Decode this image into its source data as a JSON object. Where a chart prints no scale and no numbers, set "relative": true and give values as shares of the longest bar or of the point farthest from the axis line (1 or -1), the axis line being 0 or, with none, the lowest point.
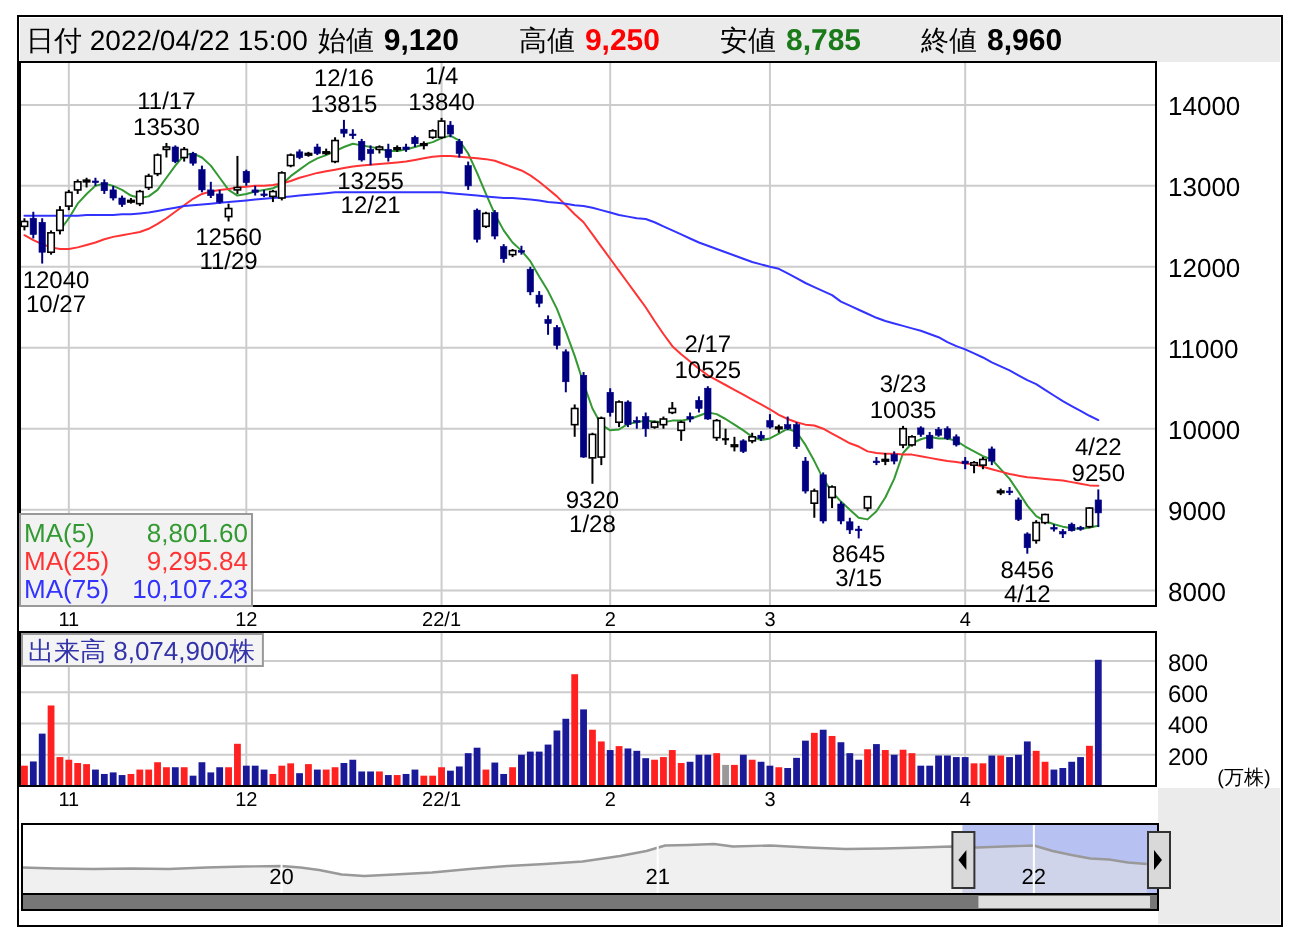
{
  "chart_data": [
    {
      "type": "candlestick",
      "categories": [
        null,
        null,
        null,
        null,
        null,
        "11",
        null,
        null,
        null,
        null,
        null,
        null,
        null,
        null,
        null,
        null,
        null,
        null,
        null,
        null,
        null,
        null,
        null,
        null,
        null,
        "12",
        null,
        null,
        null,
        null,
        null,
        null,
        null,
        null,
        null,
        null,
        null,
        null,
        null,
        null,
        null,
        null,
        null,
        null,
        null,
        null,
        null,
        "22/1",
        null,
        null,
        null,
        null,
        null,
        null,
        null,
        null,
        null,
        null,
        null,
        null,
        null,
        null,
        null,
        null,
        null,
        null,
        "2",
        null,
        null,
        null,
        null,
        null,
        null,
        null,
        null,
        null,
        null,
        null,
        null,
        null,
        null,
        null,
        null,
        null,
        "3",
        null,
        null,
        null,
        null,
        null,
        null,
        null,
        null,
        null,
        null,
        null,
        null,
        null,
        null,
        null,
        null,
        null,
        null,
        null,
        null,
        null,
        "4",
        null,
        null,
        null,
        null,
        null,
        null,
        null,
        null,
        null,
        null,
        null,
        null,
        null,
        null,
        null
      ],
      "ohlc": [
        [
          12500,
          12600,
          12450,
          12560
        ],
        [
          12600,
          12680,
          12350,
          12400
        ],
        [
          12550,
          12600,
          12040,
          12180
        ],
        [
          12180,
          12450,
          12150,
          12420
        ],
        [
          12450,
          12750,
          12400,
          12700
        ],
        [
          12750,
          12950,
          12700,
          12920
        ],
        [
          12950,
          13080,
          12900,
          13050
        ],
        [
          13050,
          13100,
          12980,
          13070
        ],
        [
          13060,
          13100,
          13000,
          13040
        ],
        [
          13040,
          13080,
          12900,
          12940
        ],
        [
          12950,
          13000,
          12820,
          12850
        ],
        [
          12850,
          12880,
          12740,
          12770
        ],
        [
          12800,
          12850,
          12780,
          12820
        ],
        [
          12780,
          12950,
          12750,
          12930
        ],
        [
          12980,
          13150,
          12950,
          13120
        ],
        [
          13150,
          13400,
          13120,
          13380
        ],
        [
          13450,
          13530,
          13350,
          13480
        ],
        [
          13480,
          13500,
          13280,
          13300
        ],
        [
          13350,
          13480,
          13300,
          13450
        ],
        [
          13400,
          13420,
          13250,
          13280
        ],
        [
          13200,
          13250,
          12920,
          12950
        ],
        [
          12950,
          13050,
          12850,
          12880
        ],
        [
          12900,
          12950,
          12780,
          12800
        ],
        [
          12620,
          12780,
          12560,
          12720
        ],
        [
          12950,
          13370,
          12900,
          12980
        ],
        [
          13180,
          13200,
          13000,
          13040
        ],
        [
          12950,
          13000,
          12880,
          12920
        ],
        [
          12900,
          12950,
          12860,
          12880
        ],
        [
          12870,
          12950,
          12800,
          12930
        ],
        [
          12850,
          13180,
          12820,
          13160
        ],
        [
          13250,
          13400,
          13230,
          13380
        ],
        [
          13420,
          13450,
          13330,
          13350
        ],
        [
          13380,
          13420,
          13360,
          13400
        ],
        [
          13480,
          13520,
          13380,
          13400
        ],
        [
          13400,
          13460,
          13380,
          13420
        ],
        [
          13300,
          13600,
          13280,
          13560
        ],
        [
          13700,
          13815,
          13600,
          13650
        ],
        [
          13640,
          13700,
          13580,
          13620
        ],
        [
          13550,
          13580,
          13300,
          13320
        ],
        [
          13450,
          13500,
          13255,
          13400
        ],
        [
          13450,
          13500,
          13400,
          13480
        ],
        [
          13450,
          13520,
          13300,
          13350
        ],
        [
          13450,
          13500,
          13420,
          13470
        ],
        [
          13480,
          13520,
          13420,
          13450
        ],
        [
          13600,
          13620,
          13480,
          13520
        ],
        [
          13500,
          13550,
          13450,
          13520
        ],
        [
          13600,
          13700,
          13580,
          13680
        ],
        [
          13600,
          13840,
          13580,
          13800
        ],
        [
          13750,
          13800,
          13600,
          13640
        ],
        [
          13550,
          13580,
          13350,
          13400
        ],
        [
          13250,
          13300,
          12950,
          13000
        ],
        [
          12700,
          12720,
          12300,
          12340
        ],
        [
          12500,
          12680,
          12480,
          12660
        ],
        [
          12670,
          12700,
          12340,
          12380
        ],
        [
          12250,
          12280,
          12050,
          12100
        ],
        [
          12150,
          12220,
          12120,
          12200
        ],
        [
          12200,
          12260,
          12150,
          12180
        ],
        [
          11970,
          12000,
          11650,
          11690
        ],
        [
          11650,
          11700,
          11500,
          11550
        ],
        [
          11350,
          11400,
          11160,
          11300
        ],
        [
          11250,
          11280,
          10980,
          11030
        ],
        [
          10950,
          10980,
          10450,
          10580
        ],
        [
          10050,
          10300,
          9900,
          10250
        ],
        [
          10660,
          10700,
          9640,
          9650
        ],
        [
          9640,
          9950,
          9320,
          9930
        ],
        [
          9650,
          10150,
          9550,
          10130
        ],
        [
          10450,
          10500,
          10150,
          10200
        ],
        [
          10080,
          10350,
          10020,
          10330
        ],
        [
          10330,
          10350,
          10020,
          10050
        ],
        [
          10100,
          10150,
          10000,
          10080
        ],
        [
          10150,
          10200,
          9900,
          10000
        ],
        [
          10020,
          10100,
          10000,
          10080
        ],
        [
          10050,
          10150,
          10000,
          10120
        ],
        [
          10200,
          10330,
          10180,
          10250
        ],
        [
          9980,
          10100,
          9850,
          10080
        ],
        [
          10150,
          10200,
          10080,
          10120
        ],
        [
          10350,
          10400,
          10200,
          10250
        ],
        [
          10500,
          10525,
          10110,
          10120
        ],
        [
          9890,
          10120,
          9850,
          10100
        ],
        [
          9880,
          10000,
          9800,
          9880
        ],
        [
          9780,
          9900,
          9720,
          9800
        ],
        [
          9850,
          9870,
          9700,
          9720
        ],
        [
          9850,
          9950,
          9820,
          9900
        ],
        [
          9920,
          9970,
          9850,
          9880
        ],
        [
          10100,
          10180,
          10000,
          10020
        ],
        [
          10000,
          10050,
          9950,
          10020
        ],
        [
          10050,
          10150,
          9980,
          10000
        ],
        [
          10050,
          10080,
          9750,
          9780
        ],
        [
          9600,
          9650,
          9200,
          9230
        ],
        [
          9080,
          9260,
          8900,
          9230
        ],
        [
          9430,
          9460,
          8830,
          8860
        ],
        [
          9150,
          9300,
          9020,
          9280
        ],
        [
          9070,
          9100,
          8820,
          8860
        ],
        [
          8850,
          8900,
          8700,
          8750
        ],
        [
          8760,
          8800,
          8645,
          8740
        ],
        [
          9020,
          9170,
          8980,
          9160
        ],
        [
          9600,
          9650,
          9550,
          9580
        ],
        [
          9600,
          9700,
          9550,
          9620
        ],
        [
          9680,
          9720,
          9560,
          9600
        ],
        [
          9800,
          10035,
          9760,
          10000
        ],
        [
          9800,
          9920,
          9780,
          9900
        ],
        [
          10010,
          10030,
          9900,
          9930
        ],
        [
          9920,
          9960,
          9750,
          9760
        ],
        [
          9990,
          10020,
          9900,
          9920
        ],
        [
          10000,
          10030,
          9860,
          9880
        ],
        [
          9900,
          9930,
          9780,
          9800
        ],
        [
          9600,
          9650,
          9500,
          9570
        ],
        [
          9550,
          9600,
          9450,
          9580
        ],
        [
          9550,
          9650,
          9500,
          9620
        ],
        [
          9750,
          9780,
          9550,
          9600
        ],
        [
          9220,
          9260,
          9180,
          9230
        ],
        [
          9230,
          9280,
          9180,
          9220
        ],
        [
          9120,
          9150,
          8860,
          8880
        ],
        [
          8700,
          8720,
          8456,
          8530
        ],
        [
          8620,
          8870,
          8580,
          8840
        ],
        [
          8840,
          8950,
          8820,
          8940
        ],
        [
          8780,
          8820,
          8730,
          8760
        ],
        [
          8730,
          8760,
          8650,
          8700
        ],
        [
          8820,
          8840,
          8730,
          8740
        ],
        [
          8780,
          8800,
          8740,
          8770
        ],
        [
          8790,
          9030,
          8770,
          9020
        ],
        [
          9120,
          9250,
          8785,
          8960
        ]
      ],
      "series": [
        {
          "type": "line",
          "name": "MA(5)",
          "color": "#339933",
          "values": [
            null,
            null,
            null,
            null,
            12450,
            12600,
            12780,
            12900,
            13000,
            13030,
            13000,
            12950,
            12880,
            12850,
            12870,
            12950,
            13100,
            13250,
            13380,
            13400,
            13350,
            13250,
            13100,
            12950,
            12880,
            12900,
            12930,
            12950,
            12970,
            13020,
            13120,
            13200,
            13280,
            13340,
            13380,
            13430,
            13480,
            13520,
            13500,
            13480,
            13460,
            13430,
            13430,
            13450,
            13480,
            13510,
            13540,
            13590,
            13620,
            13560,
            13400,
            13160,
            12900,
            12650,
            12450,
            12300,
            12200,
            12070,
            11880,
            11700,
            11480,
            11200,
            10900,
            10560,
            10250,
            10050,
            9980,
            9990,
            10060,
            10080,
            10100,
            10090,
            10080,
            10100,
            10100,
            10120,
            10160,
            10200,
            10180,
            10120,
            10050,
            9980,
            9900,
            9860,
            9880,
            9940,
            10000,
            9960,
            9800,
            9600,
            9380,
            9220,
            9100,
            9000,
            8900,
            8880,
            8980,
            9150,
            9380,
            9700,
            9820,
            9870,
            9900,
            9880,
            9880,
            9850,
            9780,
            9720,
            9660,
            9620,
            9500,
            9380,
            9220,
            9050,
            8920,
            8860,
            8820,
            8790,
            8770,
            8760,
            8780,
            8801.6
          ]
        },
        {
          "type": "line",
          "name": "MA(25)",
          "color": "#ff3333",
          "values": [
            12390,
            12330,
            12280,
            12240,
            12220,
            12220,
            12240,
            12270,
            12300,
            12340,
            12370,
            12390,
            12410,
            12430,
            12470,
            12530,
            12600,
            12680,
            12760,
            12840,
            12900,
            12930,
            12950,
            12960,
            12980,
            12990,
            13000,
            13000,
            13010,
            13030,
            13060,
            13100,
            13130,
            13160,
            13180,
            13200,
            13220,
            13240,
            13250,
            13260,
            13270,
            13280,
            13290,
            13300,
            13320,
            13340,
            13360,
            13370,
            13370,
            13360,
            13350,
            13340,
            13330,
            13310,
            13270,
            13230,
            13190,
            13130,
            13050,
            12960,
            12870,
            12760,
            12650,
            12550,
            12400,
            12250,
            12100,
            11950,
            11800,
            11650,
            11500,
            11330,
            11170,
            11020,
            10920,
            10830,
            10740,
            10660,
            10600,
            10540,
            10480,
            10420,
            10360,
            10300,
            10240,
            10170,
            10120,
            10080,
            10050,
            10040,
            10000,
            9940,
            9880,
            9820,
            9780,
            9720,
            9700,
            9690,
            9690,
            9680,
            9680,
            9660,
            9640,
            9620,
            9600,
            9590,
            9570,
            9560,
            9530,
            9500,
            9470,
            9440,
            9420,
            9400,
            9390,
            9380,
            9370,
            9360,
            9340,
            9320,
            9300,
            9295.84
          ]
        },
        {
          "type": "line",
          "name": "MA(75)",
          "color": "#3333ff",
          "values": [
            12630,
            12630,
            12630,
            12630,
            12630,
            12630,
            12630,
            12640,
            12640,
            12640,
            12640,
            12650,
            12650,
            12660,
            12670,
            12690,
            12710,
            12730,
            12750,
            12760,
            12770,
            12780,
            12790,
            12800,
            12810,
            12820,
            12830,
            12840,
            12850,
            12860,
            12870,
            12880,
            12890,
            12900,
            12910,
            12920,
            12920,
            12920,
            12920,
            12920,
            12920,
            12920,
            12920,
            12920,
            12920,
            12920,
            12920,
            12920,
            12910,
            12900,
            12890,
            12880,
            12870,
            12860,
            12850,
            12850,
            12840,
            12830,
            12820,
            12800,
            12790,
            12780,
            12760,
            12750,
            12730,
            12700,
            12670,
            12640,
            12620,
            12600,
            12590,
            12550,
            12500,
            12450,
            12400,
            12350,
            12300,
            12260,
            12220,
            12180,
            12140,
            12100,
            12060,
            12030,
            12000,
            11975,
            11920,
            11860,
            11800,
            11750,
            11700,
            11650,
            11570,
            11520,
            11470,
            11420,
            11370,
            11330,
            11300,
            11270,
            11240,
            11210,
            11170,
            11130,
            11070,
            11020,
            10980,
            10930,
            10880,
            10820,
            10770,
            10720,
            10660,
            10600,
            10550,
            10480,
            10410,
            10340,
            10280,
            10220,
            10160,
            10107.23
          ]
        }
      ],
      "ylim": [
        7810,
        14530
      ],
      "yticks": [
        8000,
        9000,
        10000,
        11000,
        12000,
        13000,
        14000
      ],
      "grid": true,
      "legend": "bottom left",
      "annotations": [
        "日付 2022/04/22 15:00",
        "始値",
        "9,120",
        "高値",
        "9,250",
        "安値",
        "8,785",
        "終値",
        "8,960",
        "8,801.60",
        "9,295.84",
        "10,107.23",
        "12040",
        "10/27",
        {
          "text": "11/17",
          "y": 13530
        },
        {
          "text": "13530",
          "y": 13530
        },
        {
          "text": "12560",
          "y": 12560
        },
        {
          "text": "11/29",
          "y": 12560
        },
        {
          "text": "12/16",
          "y": 13815
        },
        {
          "text": "13815",
          "y": 13815
        },
        {
          "text": "13255",
          "y": 13255
        },
        {
          "text": "12/21",
          "y": 13255
        },
        {
          "text": "1/4",
          "y": 13840
        },
        {
          "text": "13840",
          "y": 13840
        },
        {
          "text": "9320",
          "y": 9320
        },
        {
          "text": "1/28",
          "y": 9320
        },
        {
          "text": "2/17",
          "y": 10525
        },
        {
          "text": "10525",
          "y": 10525
        },
        {
          "text": "8645",
          "y": 8645
        },
        {
          "text": "3/15",
          "y": 8645
        },
        {
          "text": "3/23",
          "y": 10035
        },
        {
          "text": "10035",
          "y": 10035
        },
        {
          "text": "8456",
          "y": 8456
        },
        {
          "text": "4/12",
          "y": 8456
        },
        {
          "text": "4/22",
          "y": 9250
        },
        {
          "text": "9250",
          "y": 9250
        }
      ]
    },
    {
      "type": "bar",
      "title": "出来高 8,074,900株",
      "ylabel": "(万株)",
      "categories": [
        null,
        null,
        null,
        null,
        null,
        "11",
        null,
        null,
        null,
        null,
        null,
        null,
        null,
        null,
        null,
        null,
        null,
        null,
        null,
        null,
        null,
        null,
        null,
        null,
        null,
        "12",
        null,
        null,
        null,
        null,
        null,
        null,
        null,
        null,
        null,
        null,
        null,
        null,
        null,
        null,
        null,
        null,
        null,
        null,
        null,
        null,
        null,
        "22/1",
        null,
        null,
        null,
        null,
        null,
        null,
        null,
        null,
        null,
        null,
        null,
        null,
        null,
        null,
        null,
        null,
        null,
        null,
        "2",
        null,
        null,
        null,
        null,
        null,
        null,
        null,
        null,
        null,
        null,
        null,
        null,
        null,
        null,
        null,
        null,
        null,
        "3",
        null,
        null,
        null,
        null,
        null,
        null,
        null,
        null,
        null,
        null,
        null,
        null,
        null,
        null,
        null,
        null,
        null,
        null,
        null,
        null,
        null,
        "4",
        null,
        null,
        null,
        null,
        null,
        null,
        null,
        null,
        null,
        null,
        null,
        null,
        null,
        null,
        null
      ],
      "values": [
        130,
        157,
        335,
        515,
        185,
        168,
        147,
        140,
        105,
        77,
        87,
        70,
        77,
        105,
        105,
        152,
        120,
        120,
        120,
        66,
        152,
        87,
        120,
        120,
        270,
        130,
        130,
        105,
        77,
        130,
        145,
        82,
        140,
        105,
        105,
        120,
        147,
        168,
        93,
        93,
        93,
        70,
        70,
        77,
        105,
        66,
        66,
        120,
        98,
        125,
        210,
        245,
        105,
        150,
        77,
        120,
        200,
        220,
        220,
        265,
        355,
        430,
        715,
        490,
        360,
        285,
        230,
        255,
        240,
        225,
        178,
        168,
        185,
        230,
        147,
        155,
        200,
        200,
        210,
        135,
        135,
        200,
        168,
        155,
        130,
        120,
        115,
        180,
        290,
        340,
        360,
        320,
        280,
        210,
        168,
        235,
        268,
        230,
        200,
        232,
        210,
        130,
        130,
        195,
        195,
        185,
        185,
        145,
        145,
        195,
        195,
        185,
        200,
        285,
        225,
        155,
        105,
        115,
        155,
        185,
        257,
        807.49
      ],
      "colors": [
        "#ff2020",
        "#1a1a99",
        "#1a1a99",
        "#ff2020",
        "#ff2020",
        "#ff2020",
        "#ff2020",
        "#ff2020",
        "#1a1a99",
        "#1a1a99",
        "#1a1a99",
        "#1a1a99",
        "#ff2020",
        "#ff2020",
        "#ff2020",
        "#ff2020",
        "#ff2020",
        "#1a1a99",
        "#ff2020",
        "#1a1a99",
        "#1a1a99",
        "#1a1a99",
        "#1a1a99",
        "#ff2020",
        "#ff2020",
        "#1a1a99",
        "#1a1a99",
        "#1a1a99",
        "#ff2020",
        "#ff2020",
        "#ff2020",
        "#1a1a99",
        "#ff2020",
        "#1a1a99",
        "#ff2020",
        "#ff2020",
        "#1a1a99",
        "#1a1a99",
        "#1a1a99",
        "#1a1a99",
        "#ff2020",
        "#1a1a99",
        "#ff2020",
        "#1a1a99",
        "#1a1a99",
        "#ff2020",
        "#ff2020",
        "#ff2020",
        "#1a1a99",
        "#1a1a99",
        "#1a1a99",
        "#1a1a99",
        "#ff2020",
        "#1a1a99",
        "#1a1a99",
        "#ff2020",
        "#1a1a99",
        "#1a1a99",
        "#1a1a99",
        "#1a1a99",
        "#1a1a99",
        "#1a1a99",
        "#ff2020",
        "#1a1a99",
        "#ff2020",
        "#ff2020",
        "#1a1a99",
        "#ff2020",
        "#1a1a99",
        "#1a1a99",
        "#1a1a99",
        "#ff2020",
        "#ff2020",
        "#ff2020",
        "#ff2020",
        "#1a1a99",
        "#1a1a99",
        "#1a1a99",
        "#ff2020",
        "#999999",
        "#ff2020",
        "#1a1a99",
        "#ff2020",
        "#1a1a99",
        "#1a1a99",
        "#ff2020",
        "#1a1a99",
        "#1a1a99",
        "#1a1a99",
        "#ff2020",
        "#1a1a99",
        "#ff2020",
        "#1a1a99",
        "#1a1a99",
        "#1a1a99",
        "#ff2020",
        "#1a1a99",
        "#ff2020",
        "#1a1a99",
        "#ff2020",
        "#ff2020",
        "#1a1a99",
        "#1a1a99",
        "#1a1a99",
        "#1a1a99",
        "#1a1a99",
        "#1a1a99",
        "#ff2020",
        "#ff2020",
        "#1a1a99",
        "#ff2020",
        "#1a1a99",
        "#1a1a99",
        "#1a1a99",
        "#ff2020",
        "#ff2020",
        "#1a1a99",
        "#1a1a99",
        "#1a1a99",
        "#1a1a99",
        "#ff2020",
        "#1a1a99"
      ],
      "ylim": [
        0,
        985
      ],
      "yticks": [
        200,
        400,
        600,
        800
      ],
      "grid": true
    },
    {
      "type": "area",
      "relative": true,
      "color": "#e4e4e4",
      "grid": "x",
      "x": [
        2019.31,
        2019.4,
        2019.5,
        2019.6,
        2019.7,
        2019.8,
        2019.9,
        2020.0,
        2020.05,
        2020.1,
        2020.16,
        2020.22,
        2020.3,
        2020.4,
        2020.5,
        2020.6,
        2020.7,
        2020.8,
        2020.9,
        2020.97,
        2021.02,
        2021.08,
        2021.15,
        2021.2,
        2021.3,
        2021.4,
        2021.5,
        2021.6,
        2021.7,
        2021.78,
        2021.85,
        2021.92,
        2022.0,
        2022.05,
        2022.1,
        2022.15,
        2022.2,
        2022.25,
        2022.3
      ],
      "values": [
        0.53,
        0.51,
        0.5,
        0.51,
        0.5,
        0.53,
        0.55,
        0.56,
        0.53,
        0.48,
        0.39,
        0.36,
        0.39,
        0.43,
        0.5,
        0.56,
        0.6,
        0.65,
        0.76,
        0.86,
        0.97,
        0.98,
        1.0,
        0.95,
        0.97,
        0.93,
        0.9,
        0.91,
        0.93,
        0.95,
        0.93,
        0.95,
        0.97,
        0.86,
        0.78,
        0.71,
        0.69,
        0.63,
        0.6
      ],
      "xlim": [
        2019.31,
        2022.33
      ],
      "xticks": [
        {
          "value": 2020,
          "label": "20"
        },
        {
          "value": 2021,
          "label": "21"
        },
        {
          "value": 2022,
          "label": "22"
        }
      ],
      "bands": [
        {
          "axis": "x",
          "from": 2021.81,
          "to": 2022.33,
          "color": "#b8c2f2"
        }
      ]
    }
  ]
}
